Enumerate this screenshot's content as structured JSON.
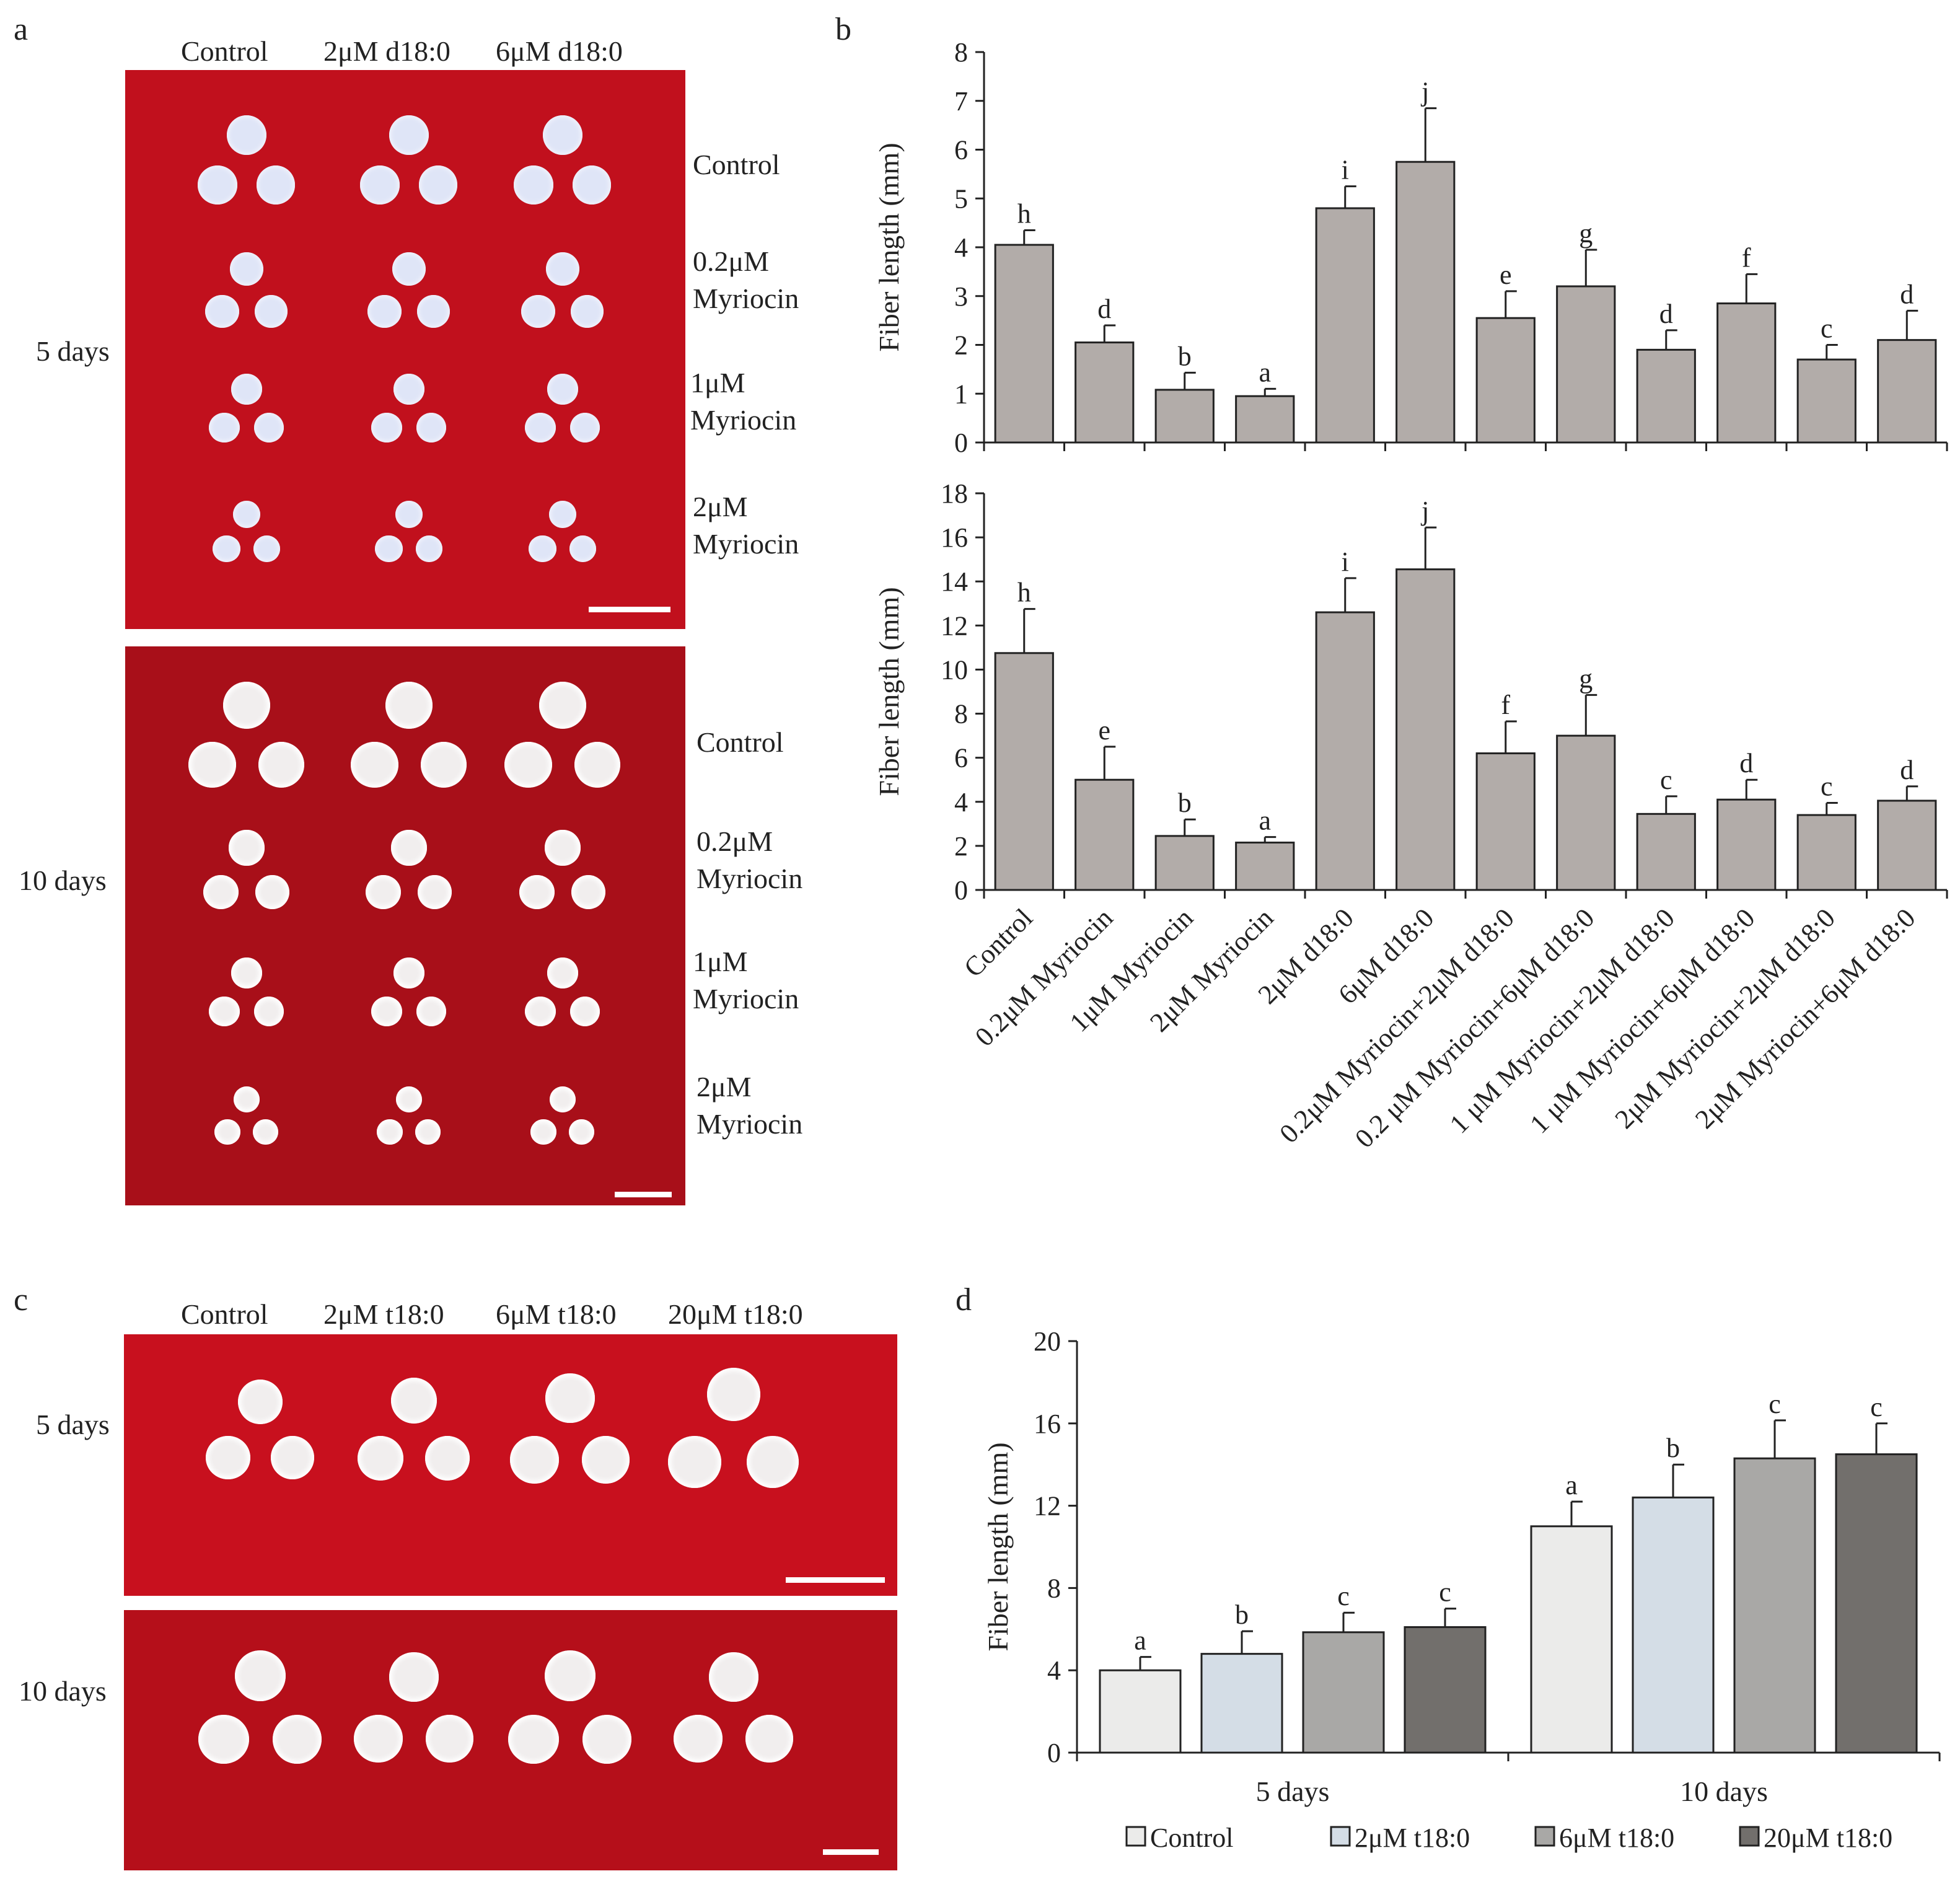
{
  "panel_labels": {
    "a": "a",
    "b": "b",
    "c": "c",
    "d": "d"
  },
  "panel_a": {
    "column_headers": [
      "Control",
      "2μM d18:0",
      "6μM d18:0"
    ],
    "time_labels": [
      "5 days",
      "10 days"
    ],
    "row_labels": [
      {
        "line1": "Control",
        "line2": ""
      },
      {
        "line1": "0.2μM",
        "line2": "Myriocin"
      },
      {
        "line1": "1μM",
        "line2": "Myriocin"
      },
      {
        "line1": "2μM",
        "line2": "Myriocin"
      }
    ]
  },
  "panel_c": {
    "column_headers": [
      "Control",
      "2μM t18:0",
      "6μM t18:0",
      "20μM t18:0"
    ],
    "time_labels": [
      "5 days",
      "10 days"
    ]
  },
  "colors": {
    "bar_b": "#b2aca9",
    "photo_red": "#c1101d"
  },
  "chart_data": [
    {
      "id": "b_top",
      "type": "bar",
      "ylabel": "Fiber length (mm)",
      "ylim": [
        0,
        8
      ],
      "yticks": [
        0,
        1,
        2,
        3,
        4,
        5,
        6,
        7,
        8
      ],
      "categories": [
        "Control",
        "0.2μM Myriocin",
        "1μM Myriocin",
        "2μM Myriocin",
        "2μM d18:0",
        "6μM d18:0",
        "0.2μM Myriocin+2μM d18:0",
        "0.2 μM Myriocin+6μM d18:0",
        "1 μM Myriocin+2μM d18:0",
        "1 μM Myriocin+6μM d18:0",
        "2μM Myriocin+2μM d18:0",
        "2μM Myriocin+6μM d18:0"
      ],
      "values": [
        4.05,
        2.05,
        1.08,
        0.95,
        4.8,
        5.75,
        2.55,
        3.2,
        1.9,
        2.85,
        1.7,
        2.1
      ],
      "errors": [
        0.3,
        0.35,
        0.35,
        0.15,
        0.45,
        1.1,
        0.55,
        0.75,
        0.4,
        0.6,
        0.3,
        0.6
      ],
      "letters": [
        "h",
        "d",
        "b",
        "a",
        "i",
        "j",
        "e",
        "g",
        "d",
        "f",
        "c",
        "d"
      ]
    },
    {
      "id": "b_bottom",
      "type": "bar",
      "ylabel": "Fiber length (mm)",
      "ylim": [
        0,
        18
      ],
      "yticks": [
        0,
        2,
        4,
        6,
        8,
        10,
        12,
        14,
        16,
        18
      ],
      "categories": [
        "Control",
        "0.2μM Myriocin",
        "1μM Myriocin",
        "2μM Myriocin",
        "2μM d18:0",
        "6μM d18:0",
        "0.2μM Myriocin+2μM d18:0",
        "0.2 μM Myriocin+6μM d18:0",
        "1 μM Myriocin+2μM d18:0",
        "1 μM Myriocin+6μM d18:0",
        "2μM Myriocin+2μM d18:0",
        "2μM Myriocin+6μM d18:0"
      ],
      "values": [
        10.75,
        5.0,
        2.45,
        2.15,
        12.6,
        14.55,
        6.2,
        7.0,
        3.45,
        4.1,
        3.4,
        4.05
      ],
      "errors": [
        2.0,
        1.5,
        0.75,
        0.25,
        1.55,
        1.9,
        1.45,
        1.85,
        0.8,
        0.9,
        0.55,
        0.65
      ],
      "letters": [
        "h",
        "e",
        "b",
        "a",
        "i",
        "j",
        "f",
        "g",
        "c",
        "d",
        "c",
        "d"
      ]
    },
    {
      "id": "d",
      "type": "bar",
      "ylabel": "Fiber length (mm)",
      "ylim": [
        0,
        20
      ],
      "yticks": [
        0,
        4,
        8,
        12,
        16,
        20
      ],
      "categories": [
        "5 days",
        "10 days"
      ],
      "series": [
        {
          "name": "Control",
          "color": "#ebebea",
          "values": [
            4.0,
            11.0
          ],
          "errors": [
            0.65,
            1.2
          ],
          "letters": [
            "a",
            "a"
          ]
        },
        {
          "name": "2μM t18:0",
          "color": "#d4dde6",
          "values": [
            4.8,
            12.4
          ],
          "errors": [
            1.1,
            1.6
          ],
          "letters": [
            "b",
            "b"
          ]
        },
        {
          "name": "6μM t18:0",
          "color": "#a9a8a6",
          "values": [
            5.85,
            14.3
          ],
          "errors": [
            0.95,
            1.85
          ],
          "letters": [
            "c",
            "c"
          ]
        },
        {
          "name": "20μM t18:0",
          "color": "#726f6c",
          "values": [
            6.1,
            14.5
          ],
          "errors": [
            0.9,
            1.5
          ],
          "letters": [
            "c",
            "c"
          ]
        }
      ],
      "legend": "bottom"
    }
  ]
}
